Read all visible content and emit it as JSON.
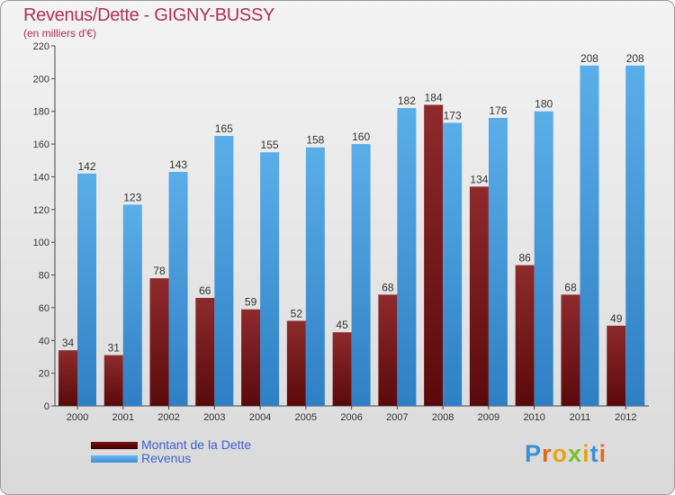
{
  "title": "Revenus/Dette - GIGNY-BUSSY",
  "subtitle": "(en milliers d'€)",
  "colors": {
    "title": "#b0305c",
    "debt": "#7a1e20",
    "revenue": "#4aa0e0",
    "legend_text": "#3d5fcf"
  },
  "legend": [
    {
      "name": "Montant de la Dette",
      "color": "#6a0c0c"
    },
    {
      "name": "Revenus",
      "color": "#4aa0e0"
    }
  ],
  "logo": {
    "text": "Proxiti"
  },
  "chart_data": {
    "type": "bar",
    "title": "Revenus/Dette - GIGNY-BUSSY",
    "ylabel": "(en milliers d'€)",
    "categories": [
      "2000",
      "2001",
      "2002",
      "2003",
      "2004",
      "2005",
      "2006",
      "2007",
      "2008",
      "2009",
      "2010",
      "2011",
      "2012"
    ],
    "series": [
      {
        "name": "Montant de la Dette",
        "values": [
          34,
          31,
          78,
          66,
          59,
          52,
          45,
          68,
          184,
          134,
          86,
          68,
          49
        ]
      },
      {
        "name": "Revenus",
        "values": [
          142,
          123,
          143,
          165,
          155,
          158,
          160,
          182,
          173,
          176,
          180,
          208,
          208
        ]
      }
    ],
    "ylim": [
      0,
      220
    ],
    "yticks": [
      0,
      20,
      40,
      60,
      80,
      100,
      120,
      140,
      160,
      180,
      200,
      220
    ],
    "grid": false
  }
}
